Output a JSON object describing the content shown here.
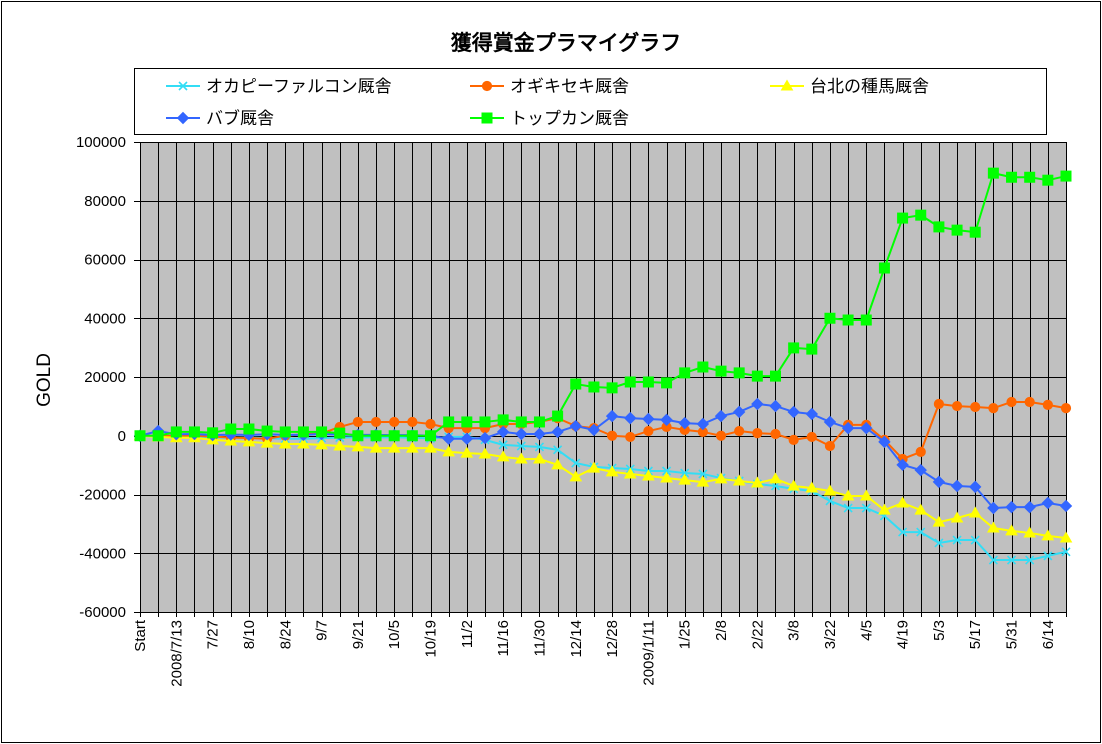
{
  "chart_data": {
    "type": "line",
    "title": "獲得賞金プラマイグラフ",
    "xlabel": "",
    "ylabel": "GOLD",
    "ylim": [
      -60000,
      100000
    ],
    "yticks": [
      100000,
      80000,
      60000,
      40000,
      20000,
      0,
      -20000,
      -40000,
      -60000
    ],
    "grid": true,
    "legend": "top",
    "categories": [
      "Start",
      "",
      "2008/7/13",
      "",
      "7/27",
      "",
      "8/10",
      "",
      "8/24",
      "",
      "9/7",
      "",
      "9/21",
      "",
      "10/5",
      "",
      "10/19",
      "",
      "11/2",
      "",
      "11/16",
      "",
      "11/30",
      "",
      "12/14",
      "",
      "12/28",
      "",
      "2009/1/11",
      "",
      "1/25",
      "",
      "2/8",
      "",
      "2/22",
      "",
      "3/8",
      "",
      "3/22",
      "",
      "4/5",
      "",
      "4/19",
      "",
      "5/3",
      "",
      "5/17",
      "",
      "5/31",
      "",
      "6/14",
      ""
    ],
    "series": [
      {
        "name": "オカピーファルコン厩舎",
        "color": "#33ddf5",
        "values": [
          0,
          0,
          0,
          -200,
          -500,
          -700,
          -600,
          -800,
          -1000,
          -1000,
          -800,
          -600,
          -500,
          -600,
          -500,
          -700,
          -900,
          -400,
          -400,
          -1400,
          -3100,
          -3500,
          -3800,
          -4800,
          -9300,
          -10600,
          -11000,
          -11300,
          -12000,
          -12000,
          -12700,
          -13000,
          -14400,
          -15400,
          -16400,
          -17100,
          -18100,
          -18800,
          -22200,
          -24600,
          -24600,
          -27300,
          -32800,
          -32800,
          -36500,
          -35500,
          -35500,
          -42300,
          -42300,
          -42300,
          -40900,
          -39500
        ]
      },
      {
        "name": "オギキセキ厩舎",
        "color": "#ff6600",
        "values": [
          0,
          0,
          0,
          0,
          -300,
          -600,
          -800,
          -1000,
          0,
          500,
          800,
          3000,
          4700,
          4700,
          4700,
          4700,
          4000,
          2600,
          2600,
          2600,
          4000,
          4000,
          4700,
          6000,
          3300,
          2600,
          0,
          -400,
          1600,
          3000,
          2000,
          1300,
          0,
          1600,
          900,
          600,
          -1400,
          -400,
          -3500,
          3700,
          3700,
          -1400,
          -7900,
          -5500,
          10800,
          10100,
          9800,
          9400,
          11500,
          11500,
          10500,
          9400
        ]
      },
      {
        "name": "台北の種馬厩舎",
        "color": "#ffff00",
        "values": [
          0,
          -400,
          -700,
          -700,
          -1400,
          -1800,
          -2100,
          -2500,
          -2800,
          -2800,
          -3100,
          -3500,
          -3800,
          -4200,
          -4200,
          -4200,
          -4200,
          -5500,
          -5900,
          -6200,
          -7200,
          -7900,
          -7900,
          -9900,
          -14000,
          -11000,
          -12300,
          -13000,
          -13700,
          -14400,
          -15100,
          -15800,
          -14700,
          -15400,
          -16100,
          -14700,
          -17100,
          -17800,
          -18800,
          -20500,
          -20500,
          -25300,
          -22900,
          -25300,
          -29400,
          -28000,
          -26300,
          -31400,
          -32400,
          -33100,
          -34100,
          -34800
        ]
      },
      {
        "name": "バブ厩舎",
        "color": "#3366ff",
        "values": [
          0,
          1600,
          500,
          600,
          200,
          400,
          300,
          500,
          300,
          300,
          600,
          400,
          300,
          300,
          200,
          200,
          0,
          -1000,
          -1000,
          -800,
          1300,
          600,
          600,
          1300,
          3300,
          2000,
          6700,
          6000,
          5700,
          5400,
          4300,
          4000,
          6700,
          8100,
          10800,
          10100,
          8100,
          7400,
          4700,
          2600,
          2600,
          -2100,
          -9900,
          -11700,
          -15700,
          -17100,
          -17400,
          -24600,
          -24300,
          -24300,
          -22900,
          -23900
        ]
      },
      {
        "name": "トップカン厩舎",
        "color": "#00ff00",
        "values": [
          0,
          0,
          1300,
          1300,
          1000,
          2300,
          2300,
          1600,
          1300,
          1300,
          1300,
          900,
          0,
          0,
          0,
          0,
          0,
          4700,
          4700,
          4700,
          5400,
          4700,
          4700,
          6700,
          17600,
          16600,
          16300,
          18300,
          18300,
          18000,
          21400,
          23400,
          22000,
          21400,
          20300,
          20300,
          29900,
          29500,
          40000,
          39400,
          39400,
          57100,
          74100,
          75100,
          71100,
          70000,
          69300,
          89400,
          88000,
          88000,
          87000,
          88400
        ]
      }
    ]
  },
  "colors": {
    "chart_background": "#ffffff",
    "plot_background": "#c0c0c0",
    "gridline": "#000000",
    "axis": "#000000"
  }
}
